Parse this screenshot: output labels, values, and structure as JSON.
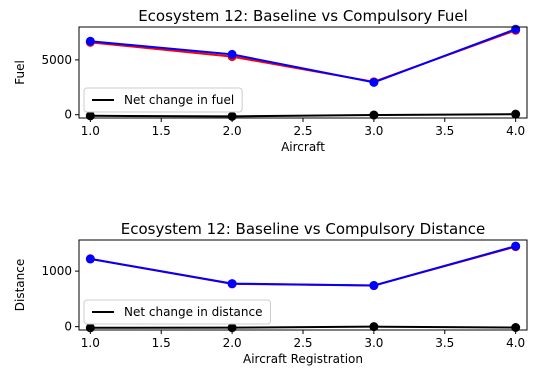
{
  "chart_data": [
    {
      "type": "line",
      "title": "Ecosystem 12: Baseline vs Compulsory Fuel",
      "xlabel": "Aircraft",
      "ylabel": "Fuel",
      "x": [
        1.0,
        2.0,
        3.0,
        4.0
      ],
      "xlim": [
        0.92,
        4.08
      ],
      "ylim": [
        -300,
        8000
      ],
      "xticks": [
        1.0,
        1.5,
        2.0,
        2.5,
        3.0,
        3.5,
        4.0
      ],
      "xtick_labels": [
        "1.0",
        "1.5",
        "2.0",
        "2.5",
        "3.0",
        "3.5",
        "4.0"
      ],
      "yticks": [
        0,
        5000
      ],
      "ytick_labels": [
        "0",
        "5000"
      ],
      "grid": false,
      "legend_position": "lower-left",
      "series": [
        {
          "role": "baseline",
          "values": [
            6600,
            5300,
            3000,
            7700
          ],
          "color": "#ff0000"
        },
        {
          "role": "compulsory",
          "values": [
            6700,
            5500,
            2950,
            7800
          ],
          "color": "#0000ff"
        },
        {
          "name": "Net change in fuel",
          "values": [
            -100,
            -150,
            -30,
            50
          ],
          "color": "#000000"
        }
      ]
    },
    {
      "type": "line",
      "title": "Ecosystem 12: Baseline vs Compulsory Distance",
      "xlabel": "Aircraft Registration",
      "ylabel": "Distance",
      "x": [
        1.0,
        2.0,
        3.0,
        4.0
      ],
      "xlim": [
        0.92,
        4.08
      ],
      "ylim": [
        -60,
        1560
      ],
      "xticks": [
        1.0,
        1.5,
        2.0,
        2.5,
        3.0,
        3.5,
        4.0
      ],
      "xtick_labels": [
        "1.0",
        "1.5",
        "2.0",
        "2.5",
        "3.0",
        "3.5",
        "4.0"
      ],
      "yticks": [
        0,
        1000
      ],
      "ytick_labels": [
        "0",
        "1000"
      ],
      "grid": false,
      "legend_position": "lower-left",
      "series": [
        {
          "role": "baseline",
          "values": [
            1220,
            770,
            740,
            1440
          ],
          "color": "#ff0000"
        },
        {
          "role": "compulsory",
          "values": [
            1220,
            775,
            740,
            1450
          ],
          "color": "#0000ff"
        },
        {
          "name": "Net change in distance",
          "values": [
            -20,
            -18,
            0,
            -15
          ],
          "color": "#000000"
        }
      ]
    }
  ]
}
